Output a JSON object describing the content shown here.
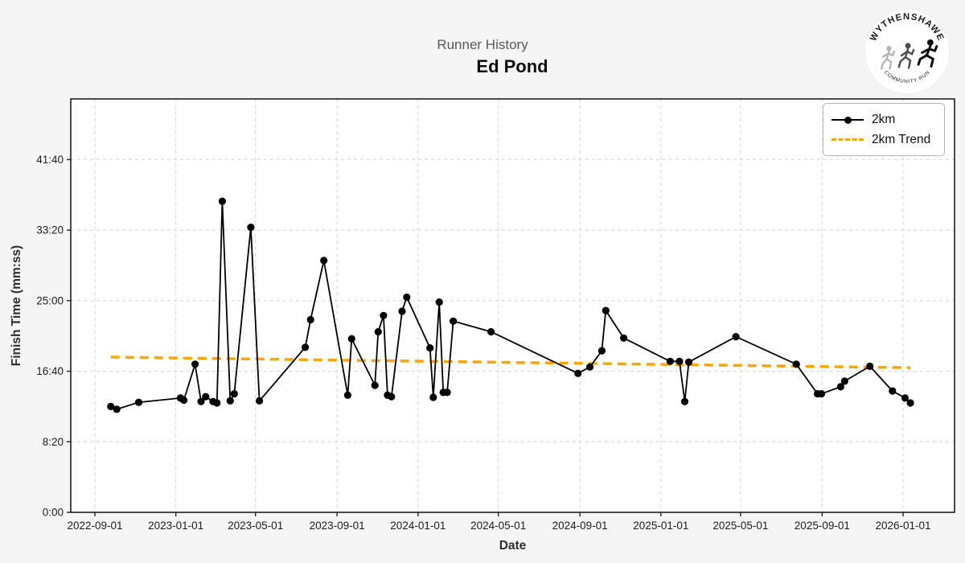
{
  "header": {
    "subtitle": "Runner History",
    "title": "Ed Pond"
  },
  "logo": {
    "top_text": "WYTHENSHAWE",
    "bottom_text": "COMMUNITY RUN"
  },
  "colors": {
    "background": "#f5f5f5",
    "plot_background": "#ffffff",
    "series_line": "#000000",
    "trend_line": "#FFA500",
    "gridline": "#d4d4d4",
    "subtitle_text": "#595959",
    "title_text": "#0e0e0e"
  },
  "chart_data": {
    "type": "line",
    "title": "Runner History",
    "subtitle": "Ed Pond",
    "xlabel": "Date",
    "ylabel": "Finish Time (mm:ss)",
    "grid": true,
    "legend_position": "upper right",
    "legend": [
      {
        "label": "2km",
        "color": "#000000",
        "style": "solid",
        "marker": "circle"
      },
      {
        "label": "2km Trend",
        "color": "#FFA500",
        "style": "dashed",
        "marker": "none"
      }
    ],
    "x_ticks": [
      "2022-09-01",
      "2023-01-01",
      "2023-05-01",
      "2023-09-01",
      "2024-01-01",
      "2024-05-01",
      "2024-09-01",
      "2025-01-01",
      "2025-05-01",
      "2025-09-01",
      "2026-01-01"
    ],
    "y_ticks": [
      {
        "label": "0:00",
        "seconds": 0
      },
      {
        "label": "8:20",
        "seconds": 500
      },
      {
        "label": "16:40",
        "seconds": 1000
      },
      {
        "label": "25:00",
        "seconds": 1500
      },
      {
        "label": "33:20",
        "seconds": 2000
      },
      {
        "label": "41:40",
        "seconds": 2500
      }
    ],
    "ylim_seconds": [
      0,
      2930
    ],
    "series": [
      {
        "name": "2km",
        "color": "#000000",
        "points": [
          {
            "date": "2022-09-25",
            "time": "12:30"
          },
          {
            "date": "2022-10-04",
            "time": "12:10"
          },
          {
            "date": "2022-11-06",
            "time": "13:00"
          },
          {
            "date": "2023-01-08",
            "time": "13:30"
          },
          {
            "date": "2023-01-13",
            "time": "13:15"
          },
          {
            "date": "2023-01-30",
            "time": "17:30"
          },
          {
            "date": "2023-02-08",
            "time": "13:05"
          },
          {
            "date": "2023-02-15",
            "time": "13:40"
          },
          {
            "date": "2023-02-26",
            "time": "13:05"
          },
          {
            "date": "2023-03-04",
            "time": "12:55"
          },
          {
            "date": "2023-03-12",
            "time": "36:45"
          },
          {
            "date": "2023-03-24",
            "time": "13:10"
          },
          {
            "date": "2023-03-30",
            "time": "14:00"
          },
          {
            "date": "2023-04-24",
            "time": "33:40"
          },
          {
            "date": "2023-05-07",
            "time": "13:10"
          },
          {
            "date": "2023-07-15",
            "time": "19:30"
          },
          {
            "date": "2023-07-23",
            "time": "22:45"
          },
          {
            "date": "2023-08-12",
            "time": "29:45"
          },
          {
            "date": "2023-09-17",
            "time": "13:50"
          },
          {
            "date": "2023-09-23",
            "time": "20:30"
          },
          {
            "date": "2023-10-28",
            "time": "15:00"
          },
          {
            "date": "2023-11-02",
            "time": "21:20"
          },
          {
            "date": "2023-11-10",
            "time": "23:15"
          },
          {
            "date": "2023-11-16",
            "time": "13:50"
          },
          {
            "date": "2023-11-22",
            "time": "13:40"
          },
          {
            "date": "2023-12-08",
            "time": "23:45"
          },
          {
            "date": "2023-12-15",
            "time": "25:25"
          },
          {
            "date": "2024-01-19",
            "time": "19:25"
          },
          {
            "date": "2024-01-24",
            "time": "13:35"
          },
          {
            "date": "2024-02-02",
            "time": "24:50"
          },
          {
            "date": "2024-02-08",
            "time": "14:10"
          },
          {
            "date": "2024-02-14",
            "time": "14:10"
          },
          {
            "date": "2024-02-23",
            "time": "22:35"
          },
          {
            "date": "2024-04-20",
            "time": "21:20"
          },
          {
            "date": "2024-08-29",
            "time": "16:25"
          },
          {
            "date": "2024-09-16",
            "time": "17:10"
          },
          {
            "date": "2024-10-04",
            "time": "19:05"
          },
          {
            "date": "2024-10-10",
            "time": "23:50"
          },
          {
            "date": "2024-11-06",
            "time": "20:35"
          },
          {
            "date": "2025-01-15",
            "time": "17:50"
          },
          {
            "date": "2025-01-29",
            "time": "17:50"
          },
          {
            "date": "2025-02-06",
            "time": "13:05"
          },
          {
            "date": "2025-02-12",
            "time": "17:45"
          },
          {
            "date": "2025-04-24",
            "time": "20:45"
          },
          {
            "date": "2025-07-24",
            "time": "17:30"
          },
          {
            "date": "2025-08-25",
            "time": "14:00"
          },
          {
            "date": "2025-08-31",
            "time": "14:00"
          },
          {
            "date": "2025-09-29",
            "time": "14:50"
          },
          {
            "date": "2025-10-05",
            "time": "15:30"
          },
          {
            "date": "2025-11-12",
            "time": "17:15"
          },
          {
            "date": "2025-12-16",
            "time": "14:20"
          },
          {
            "date": "2026-01-04",
            "time": "13:30"
          },
          {
            "date": "2026-01-12",
            "time": "12:55"
          }
        ]
      }
    ],
    "trend": {
      "name": "2km Trend",
      "color": "#FFA500",
      "start": {
        "date": "2022-09-25",
        "time": "18:20"
      },
      "end": {
        "date": "2026-01-12",
        "time": "17:05"
      }
    }
  }
}
